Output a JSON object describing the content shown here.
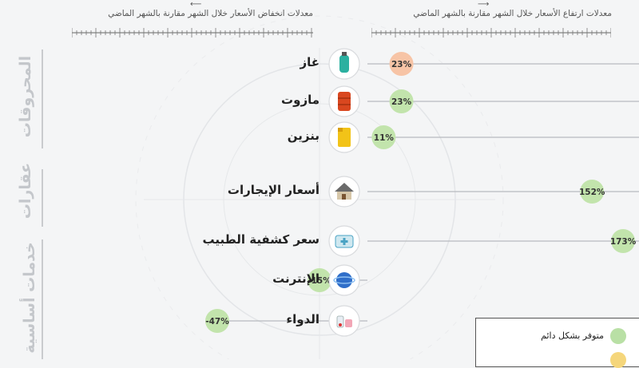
{
  "header": {
    "right_caption": "معدلات ارتفاع الأسعار خلال الشهر مقارنة بالشهر الماضي",
    "left_caption": "معدلات انخفاض الأسعار خلال الشهر مقارنة بالشهر الماضي"
  },
  "categories": {
    "fuel": "المحروقات",
    "real_estate": "عقارات",
    "services": "خدمات أساسية"
  },
  "legend": {
    "items": [
      {
        "label": "متوفر بشكل دائم",
        "color": "#b9e0a5"
      },
      {
        "label": "",
        "color": "#f5d67b"
      }
    ]
  },
  "chart_data": {
    "type": "bar",
    "direction": "horizontal-diverging",
    "x_unit": "%",
    "categories": [
      "غاز",
      "مازوت",
      "بنزين",
      "أسعار الإيجارات",
      "سعر كشفية الطبيب",
      "الإنترنت",
      "الدواء"
    ],
    "icons": [
      "gas-cylinder-icon",
      "oil-barrel-icon",
      "fuel-can-icon",
      "house-icon",
      "medical-kit-icon",
      "globe-icon",
      "medicine-icon"
    ],
    "groups": [
      "fuel",
      "fuel",
      "fuel",
      "real_estate",
      "services",
      "services",
      "services"
    ],
    "values": [
      23,
      23,
      11,
      152,
      173,
      -15,
      -47
    ],
    "value_labels": [
      "23%",
      "23%",
      "11%",
      "152%",
      "173%",
      "-15%",
      "-47%"
    ],
    "marker_colors": [
      "#f7c4a6",
      "#c2e4ac",
      "#c2e4ac",
      "#c2e4ac",
      "#c2e4ac",
      "#c2e4ac",
      "#c2e4ac"
    ]
  }
}
